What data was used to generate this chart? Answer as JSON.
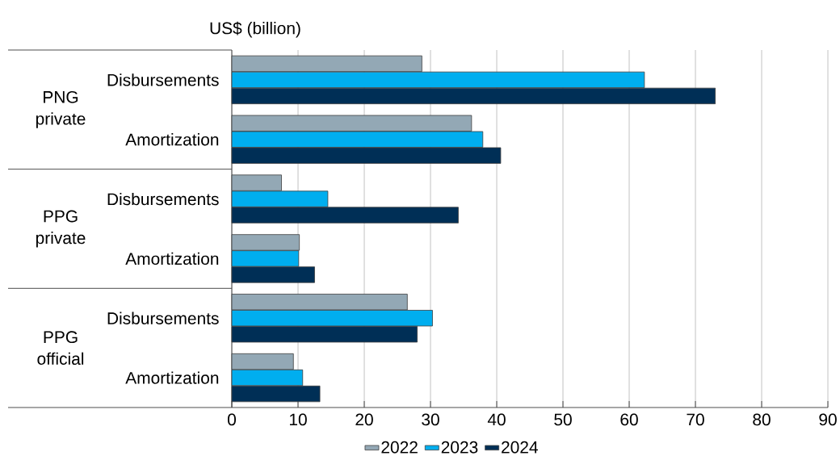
{
  "chart_data": {
    "type": "bar",
    "orientation": "horizontal",
    "xlabel": "US$ (billion)",
    "categories": [
      "Disbursements",
      "Amortization",
      "Disbursements",
      "Amortization",
      "Disbursements",
      "Amortization"
    ],
    "annotations": [
      "PNG private",
      "PPG private",
      "PPG official"
    ],
    "series": [
      {
        "name": "2022",
        "color": "#93a8b5",
        "values": [
          28.7,
          36.2,
          7.5,
          10.2,
          26.5,
          9.3
        ]
      },
      {
        "name": "2023",
        "color": "#00aeef",
        "values": [
          62.3,
          37.9,
          14.5,
          10.1,
          30.3,
          10.7
        ]
      },
      {
        "name": "2024",
        "color": "#002f56",
        "values": [
          73.0,
          40.6,
          34.2,
          12.5,
          28.0,
          13.3
        ]
      }
    ],
    "xlim": [
      0,
      90
    ],
    "xticks": [
      0,
      10,
      20,
      30,
      40,
      50,
      60,
      70,
      80,
      90
    ],
    "grid": "x",
    "legend": "bottom"
  }
}
